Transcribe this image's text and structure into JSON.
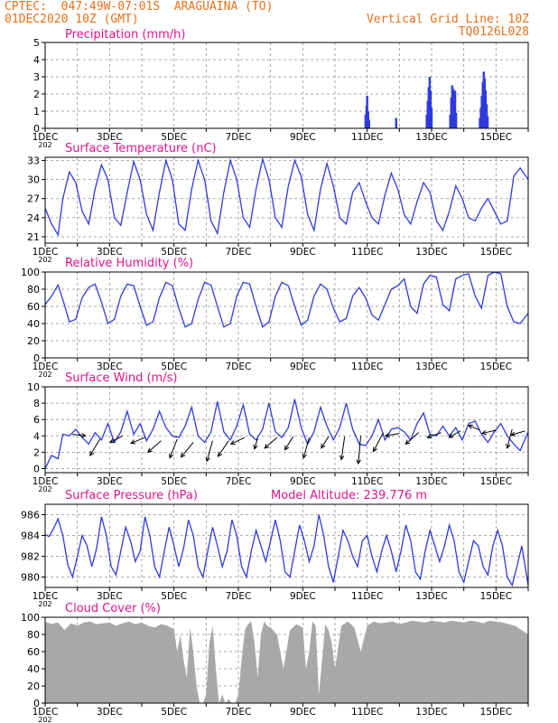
{
  "header": {
    "line1": "CPTEC:  047:49W-07:01S  ARAGUAINA (TO)",
    "line2": "01DEC2020 10Z (GMT)",
    "grid_note": "Vertical Grid Line: 10Z",
    "code": "TQ0126L028"
  },
  "x_ticks": [
    "1DEC",
    "3DEC",
    "5DEC",
    "7DEC",
    "9DEC",
    "11DEC",
    "13DEC",
    "15DEC"
  ],
  "x_sub": "202",
  "colors": {
    "title": "#e0148c",
    "line": "#2f3bdc",
    "bar": "#2f3bdc",
    "fill": "#a8a8a8",
    "axis": "#000000",
    "grid": "#909090",
    "header": "#e8701a"
  },
  "chart_data": [
    {
      "type": "bar",
      "title": "Precipitation  (mm/h)",
      "xlabel": "",
      "ylabel": "",
      "x_range": [
        0,
        15
      ],
      "ylim": [
        0,
        5
      ],
      "yticks": [
        "0",
        "1",
        "2",
        "3",
        "4",
        "5"
      ],
      "grid": true,
      "bars": [
        [
          9.95,
          0.8
        ],
        [
          9.98,
          1.3
        ],
        [
          10.0,
          1.9
        ],
        [
          10.03,
          1.0
        ],
        [
          10.06,
          0.5
        ],
        [
          10.9,
          0.6
        ],
        [
          11.85,
          0.8
        ],
        [
          11.88,
          1.6
        ],
        [
          11.91,
          2.4
        ],
        [
          11.94,
          3.0
        ],
        [
          11.97,
          2.2
        ],
        [
          12.0,
          1.2
        ],
        [
          12.58,
          0.8
        ],
        [
          12.61,
          1.8
        ],
        [
          12.64,
          2.5
        ],
        [
          12.67,
          2.3
        ],
        [
          12.7,
          1.6
        ],
        [
          12.73,
          2.2
        ],
        [
          12.76,
          0.9
        ],
        [
          13.5,
          0.6
        ],
        [
          13.53,
          1.2
        ],
        [
          13.56,
          1.9
        ],
        [
          13.59,
          2.7
        ],
        [
          13.62,
          3.3
        ],
        [
          13.65,
          2.9
        ],
        [
          13.68,
          2.2
        ],
        [
          13.71,
          1.4
        ],
        [
          13.74,
          0.7
        ]
      ]
    },
    {
      "type": "line",
      "title": "Surface Temperature  (nC)",
      "xlabel": "",
      "ylabel": "",
      "x_range": [
        0,
        15
      ],
      "ylim": [
        20,
        33.5
      ],
      "yticks": [
        21,
        24,
        27,
        30,
        33
      ],
      "grid": true,
      "x": [
        0,
        0.2,
        0.4,
        0.55,
        0.75,
        0.95,
        1.15,
        1.35,
        1.55,
        1.75,
        1.95,
        2.15,
        2.35,
        2.55,
        2.75,
        2.95,
        3.15,
        3.35,
        3.55,
        3.75,
        3.95,
        4.15,
        4.35,
        4.55,
        4.75,
        4.95,
        5.15,
        5.35,
        5.55,
        5.75,
        5.95,
        6.15,
        6.35,
        6.55,
        6.75,
        6.95,
        7.15,
        7.35,
        7.55,
        7.75,
        7.95,
        8.15,
        8.35,
        8.55,
        8.75,
        8.95,
        9.15,
        9.35,
        9.55,
        9.75,
        9.95,
        10.15,
        10.35,
        10.55,
        10.75,
        10.95,
        11.15,
        11.35,
        11.55,
        11.75,
        11.95,
        12.15,
        12.35,
        12.55,
        12.75,
        12.95,
        13.15,
        13.35,
        13.55,
        13.75,
        13.95,
        14.15,
        14.35,
        14.55,
        14.75,
        15
      ],
      "y": [
        25.5,
        23.0,
        21.3,
        27.0,
        31.2,
        29.5,
        25.0,
        23.0,
        28.5,
        32.3,
        30.0,
        24.0,
        22.8,
        28.0,
        32.8,
        30.0,
        24.5,
        22.0,
        28.0,
        33.0,
        30.0,
        23.0,
        22.0,
        28.5,
        33.0,
        30.0,
        23.5,
        21.5,
        28.0,
        33.0,
        30.0,
        24.0,
        22.5,
        28.5,
        33.2,
        30.0,
        24.0,
        22.5,
        29.0,
        33.0,
        30.5,
        24.5,
        22.0,
        28.5,
        32.5,
        29.0,
        24.0,
        23.0,
        28.0,
        29.5,
        26.5,
        24.0,
        23.0,
        27.5,
        31.0,
        28.5,
        24.5,
        23.0,
        26.5,
        29.5,
        28.0,
        23.5,
        22.0,
        25.0,
        29.0,
        27.0,
        24.0,
        23.5,
        25.5,
        27.0,
        25.0,
        23.0,
        23.5,
        30.5,
        31.8,
        30.0
      ]
    },
    {
      "type": "line",
      "title": "Relative Humidity  (%)",
      "xlabel": "",
      "ylabel": "",
      "x_range": [
        0,
        15
      ],
      "ylim": [
        0,
        100
      ],
      "yticks": [
        0,
        20,
        40,
        60,
        80,
        100
      ],
      "grid": true,
      "x": [
        0,
        0.2,
        0.4,
        0.55,
        0.75,
        0.95,
        1.15,
        1.35,
        1.55,
        1.75,
        1.95,
        2.15,
        2.35,
        2.55,
        2.75,
        2.95,
        3.15,
        3.35,
        3.55,
        3.75,
        3.95,
        4.15,
        4.35,
        4.55,
        4.75,
        4.95,
        5.15,
        5.35,
        5.55,
        5.75,
        5.95,
        6.15,
        6.35,
        6.55,
        6.75,
        6.95,
        7.15,
        7.35,
        7.55,
        7.75,
        7.95,
        8.15,
        8.35,
        8.55,
        8.75,
        8.95,
        9.15,
        9.35,
        9.55,
        9.75,
        9.95,
        10.15,
        10.35,
        10.55,
        10.75,
        10.95,
        11.15,
        11.35,
        11.55,
        11.75,
        11.95,
        12.15,
        12.35,
        12.55,
        12.75,
        12.95,
        13.15,
        13.35,
        13.55,
        13.75,
        13.95,
        14.15,
        14.35,
        14.55,
        14.75,
        15
      ],
      "y": [
        62,
        72,
        85,
        68,
        42,
        45,
        70,
        82,
        86,
        65,
        40,
        45,
        72,
        86,
        84,
        60,
        38,
        42,
        70,
        88,
        84,
        58,
        36,
        40,
        68,
        88,
        85,
        60,
        36,
        40,
        72,
        88,
        86,
        60,
        36,
        42,
        72,
        88,
        84,
        60,
        38,
        44,
        72,
        86,
        80,
        58,
        42,
        46,
        72,
        82,
        70,
        50,
        44,
        62,
        80,
        84,
        92,
        60,
        52,
        86,
        96,
        94,
        62,
        55,
        92,
        96,
        98,
        72,
        58,
        96,
        100,
        98,
        60,
        42,
        40,
        52
      ]
    },
    {
      "type": "line",
      "title": "Surface Wind  (m/s)",
      "xlabel": "",
      "ylabel": "",
      "x_range": [
        0,
        15
      ],
      "ylim": [
        -0.5,
        10
      ],
      "yticks": [
        0,
        2,
        4,
        6,
        8,
        10
      ],
      "grid": true,
      "x": [
        0,
        0.2,
        0.4,
        0.55,
        0.75,
        0.95,
        1.15,
        1.35,
        1.55,
        1.75,
        1.95,
        2.15,
        2.35,
        2.55,
        2.75,
        2.95,
        3.15,
        3.35,
        3.55,
        3.75,
        3.95,
        4.15,
        4.35,
        4.55,
        4.75,
        4.95,
        5.15,
        5.35,
        5.55,
        5.75,
        5.95,
        6.15,
        6.35,
        6.55,
        6.75,
        6.95,
        7.15,
        7.35,
        7.55,
        7.75,
        7.95,
        8.15,
        8.35,
        8.55,
        8.75,
        8.95,
        9.15,
        9.35,
        9.55,
        9.75,
        9.95,
        10.15,
        10.35,
        10.55,
        10.75,
        10.95,
        11.15,
        11.35,
        11.55,
        11.75,
        11.95,
        12.15,
        12.35,
        12.55,
        12.75,
        12.95,
        13.15,
        13.35,
        13.55,
        13.75,
        13.95,
        14.15,
        14.35,
        14.55,
        14.75,
        15
      ],
      "y": [
        0.0,
        1.6,
        1.2,
        4.2,
        4.0,
        4.8,
        3.8,
        3.0,
        4.4,
        3.5,
        5.5,
        3.2,
        4.5,
        7.0,
        4.2,
        5.5,
        3.4,
        4.8,
        7.0,
        5.0,
        4.0,
        3.8,
        5.2,
        7.5,
        4.0,
        3.2,
        4.5,
        8.2,
        4.5,
        3.5,
        5.2,
        7.8,
        4.2,
        3.5,
        4.8,
        8.0,
        4.5,
        3.8,
        5.0,
        8.5,
        5.0,
        3.0,
        4.5,
        7.5,
        5.2,
        3.5,
        5.0,
        8.0,
        4.8,
        3.0,
        2.8,
        4.0,
        6.0,
        3.5,
        4.8,
        5.0,
        4.5,
        3.5,
        5.5,
        6.8,
        4.2,
        4.0,
        5.2,
        4.0,
        5.0,
        3.5,
        5.5,
        5.8,
        4.2,
        3.2,
        4.5,
        5.5,
        4.0,
        3.0,
        2.2,
        4.5
      ],
      "vectors": [
        [
          0.85,
          4.2,
          1.6,
          -0.2
        ],
        [
          1.7,
          3.6,
          -1.2,
          -2.0
        ],
        [
          2.4,
          4.0,
          -1.5,
          -0.8
        ],
        [
          3.1,
          3.8,
          -1.7,
          -0.7
        ],
        [
          3.6,
          3.4,
          -1.6,
          -1.4
        ],
        [
          4.1,
          3.6,
          -0.9,
          -2.3
        ],
        [
          4.6,
          3.2,
          -1.5,
          -1.8
        ],
        [
          5.2,
          3.4,
          -0.7,
          -2.5
        ],
        [
          5.7,
          3.4,
          -1.3,
          -1.9
        ],
        [
          6.2,
          3.8,
          -1.7,
          -0.8
        ],
        [
          6.6,
          3.7,
          -0.4,
          -1.3
        ],
        [
          7.2,
          3.8,
          -1.5,
          -1.3
        ],
        [
          7.7,
          3.9,
          -1.0,
          -1.6
        ],
        [
          8.2,
          3.8,
          -0.7,
          -2.5
        ],
        [
          8.8,
          3.9,
          -0.9,
          -1.4
        ],
        [
          9.3,
          3.9,
          -0.4,
          -2.8
        ],
        [
          9.8,
          4.0,
          -0.3,
          -3.4
        ],
        [
          10.5,
          4.4,
          -1.2,
          -2.3
        ],
        [
          11.0,
          4.3,
          -1.7,
          -0.3
        ],
        [
          11.6,
          4.4,
          -1.6,
          -1.4
        ],
        [
          12.3,
          4.4,
          -1.7,
          -0.6
        ],
        [
          12.9,
          4.6,
          -1.4,
          -0.8
        ],
        [
          13.5,
          4.7,
          -1.4,
          0.6
        ],
        [
          14.0,
          4.7,
          -1.7,
          -0.4
        ],
        [
          14.5,
          4.8,
          -0.6,
          -2.3
        ],
        [
          14.9,
          4.6,
          -1.7,
          -0.5
        ]
      ]
    },
    {
      "type": "line",
      "title": "Surface Pressure  (hPa)",
      "annotation": "Model Altitude: 239.776  m",
      "xlabel": "",
      "ylabel": "",
      "x_range": [
        0,
        15
      ],
      "ylim": [
        979,
        987
      ],
      "yticks": [
        980,
        982,
        984,
        986
      ],
      "grid": true,
      "x": [
        0,
        0.12,
        0.25,
        0.4,
        0.55,
        0.7,
        0.85,
        1.0,
        1.15,
        1.3,
        1.45,
        1.6,
        1.75,
        1.9,
        2.05,
        2.2,
        2.35,
        2.5,
        2.65,
        2.8,
        2.95,
        3.1,
        3.25,
        3.4,
        3.55,
        3.7,
        3.85,
        4.0,
        4.15,
        4.3,
        4.45,
        4.6,
        4.75,
        4.9,
        5.05,
        5.2,
        5.35,
        5.5,
        5.65,
        5.8,
        5.95,
        6.1,
        6.25,
        6.4,
        6.55,
        6.7,
        6.85,
        7.0,
        7.15,
        7.3,
        7.45,
        7.6,
        7.75,
        7.9,
        8.05,
        8.2,
        8.35,
        8.5,
        8.65,
        8.8,
        8.95,
        9.1,
        9.25,
        9.4,
        9.55,
        9.7,
        9.85,
        10.0,
        10.15,
        10.3,
        10.45,
        10.6,
        10.75,
        10.9,
        11.05,
        11.2,
        11.35,
        11.5,
        11.65,
        11.8,
        11.95,
        12.1,
        12.25,
        12.4,
        12.55,
        12.7,
        12.85,
        13.0,
        13.15,
        13.3,
        13.45,
        13.6,
        13.75,
        13.9,
        14.05,
        14.2,
        14.35,
        14.5,
        14.65,
        14.8,
        15
      ],
      "y": [
        984.1,
        983.9,
        984.6,
        985.6,
        984.0,
        981.2,
        980.0,
        982.0,
        984.0,
        983.0,
        981.0,
        982.8,
        985.8,
        984.0,
        981.0,
        980.2,
        982.5,
        984.8,
        983.5,
        981.5,
        982.5,
        985.8,
        984.0,
        981.0,
        980.0,
        982.5,
        984.8,
        983.0,
        981.0,
        982.8,
        985.5,
        984.0,
        981.0,
        980.0,
        982.5,
        984.8,
        983.0,
        981.0,
        982.5,
        985.5,
        984.0,
        981.0,
        980.0,
        982.5,
        984.5,
        983.0,
        981.5,
        983.5,
        985.5,
        983.5,
        980.5,
        980.0,
        982.5,
        985.0,
        983.5,
        981.5,
        983.0,
        986.0,
        984.0,
        981.0,
        979.5,
        982.0,
        984.5,
        983.5,
        982.0,
        981.0,
        983.5,
        984.0,
        982.0,
        980.5,
        982.5,
        984.0,
        982.5,
        980.5,
        982.5,
        985.0,
        983.5,
        980.5,
        979.8,
        982.5,
        984.5,
        983.0,
        981.5,
        983.0,
        985.0,
        983.5,
        980.5,
        979.5,
        981.5,
        983.5,
        983.0,
        981.0,
        980.2,
        983.0,
        984.5,
        983.0,
        980.0,
        979.2,
        981.0,
        983.0,
        979.2
      ]
    },
    {
      "type": "area",
      "title": "Cloud Cover  (%)",
      "xlabel": "",
      "ylabel": "",
      "x_range": [
        0,
        15
      ],
      "ylim": [
        0,
        100
      ],
      "yticks": [
        0,
        20,
        40,
        60,
        80,
        100
      ],
      "grid": true,
      "x": [
        0,
        0.2,
        0.4,
        0.6,
        0.8,
        1.0,
        1.2,
        1.4,
        1.6,
        1.8,
        2.0,
        2.2,
        2.4,
        2.6,
        2.8,
        3.0,
        3.2,
        3.4,
        3.6,
        3.8,
        4.0,
        4.1,
        4.2,
        4.3,
        4.4,
        4.5,
        4.6,
        4.7,
        4.8,
        4.9,
        5.0,
        5.1,
        5.2,
        5.3,
        5.4,
        5.5,
        5.6,
        5.7,
        5.8,
        5.9,
        6.0,
        6.1,
        6.2,
        6.3,
        6.4,
        6.5,
        6.6,
        6.7,
        6.8,
        6.9,
        7.0,
        7.2,
        7.4,
        7.6,
        7.8,
        8.0,
        8.1,
        8.2,
        8.3,
        8.4,
        8.5,
        8.6,
        8.7,
        8.8,
        8.9,
        9.0,
        9.2,
        9.4,
        9.6,
        9.8,
        10.0,
        10.2,
        10.4,
        10.6,
        10.8,
        11.0,
        11.2,
        11.4,
        11.6,
        11.8,
        12.0,
        12.2,
        12.4,
        12.6,
        12.8,
        13.0,
        13.2,
        13.4,
        13.6,
        13.8,
        14.0,
        14.2,
        14.4,
        14.6,
        14.8,
        15
      ],
      "y": [
        95,
        92,
        94,
        85,
        93,
        90,
        94,
        95,
        92,
        93,
        94,
        90,
        93,
        95,
        92,
        94,
        90,
        88,
        92,
        90,
        86,
        60,
        80,
        50,
        30,
        88,
        60,
        20,
        0,
        0,
        10,
        70,
        90,
        40,
        0,
        10,
        0,
        5,
        0,
        0,
        10,
        50,
        85,
        92,
        95,
        70,
        30,
        80,
        95,
        90,
        88,
        80,
        40,
        85,
        92,
        88,
        40,
        60,
        95,
        90,
        10,
        50,
        92,
        85,
        70,
        40,
        90,
        95,
        88,
        60,
        90,
        95,
        93,
        94,
        95,
        92,
        94,
        96,
        95,
        94,
        96,
        95,
        94,
        96,
        95,
        94,
        96,
        95,
        93,
        96,
        95,
        94,
        92,
        90,
        85,
        80
      ]
    }
  ]
}
